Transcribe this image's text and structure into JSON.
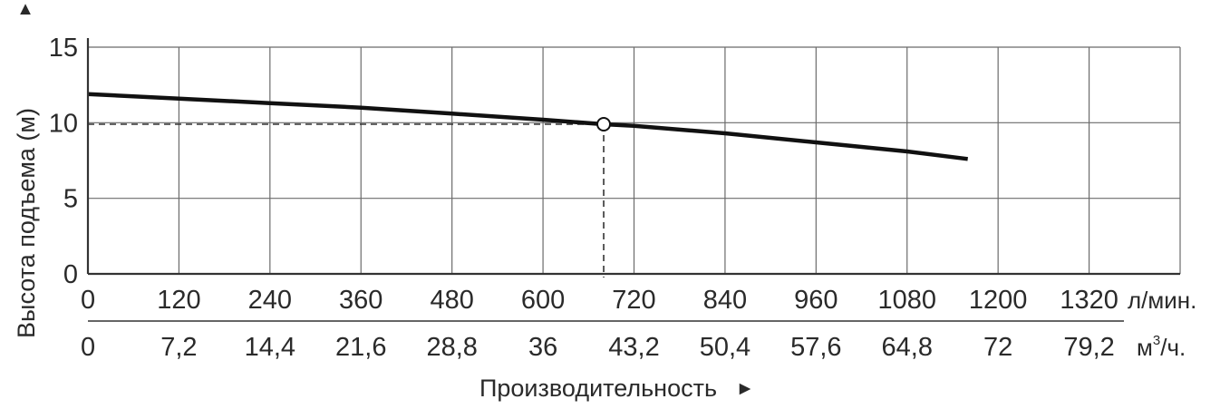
{
  "chart_data": {
    "type": "line",
    "ylabel": "Высота подъема (м)",
    "ylabel_arrow": "▲",
    "xlabel": "Производительность",
    "xlabel_arrow": "►",
    "y_ticks": [
      "0",
      "5",
      "10",
      "15"
    ],
    "ylim": [
      0,
      15
    ],
    "x_ticks_primary": [
      "0",
      "120",
      "240",
      "360",
      "480",
      "600",
      "720",
      "840",
      "960",
      "1080",
      "1200",
      "1320"
    ],
    "x_unit_primary": "л/мин.",
    "x_ticks_secondary": [
      "0",
      "7,2",
      "14,4",
      "21,6",
      "28,8",
      "36",
      "43,2",
      "50,4",
      "57,6",
      "64,8",
      "72",
      "79,2"
    ],
    "x_unit_secondary_base": "м",
    "x_unit_secondary_sup": "3",
    "x_unit_secondary_tail": "/ч.",
    "xlim": [
      0,
      1440
    ],
    "grid": true,
    "series": [
      {
        "x": [
          0,
          120,
          240,
          360,
          480,
          600,
          680,
          720,
          840,
          960,
          1080,
          1160
        ],
        "y": [
          11.9,
          11.6,
          11.3,
          11.0,
          10.6,
          10.2,
          9.9,
          9.8,
          9.3,
          8.7,
          8.1,
          7.6
        ]
      }
    ],
    "operating_point": {
      "x": 680,
      "y": 9.9
    },
    "colors": {
      "line": "#111111",
      "grid": "#6b6b6b",
      "axis": "#333333",
      "text": "#2a2a2a"
    }
  }
}
